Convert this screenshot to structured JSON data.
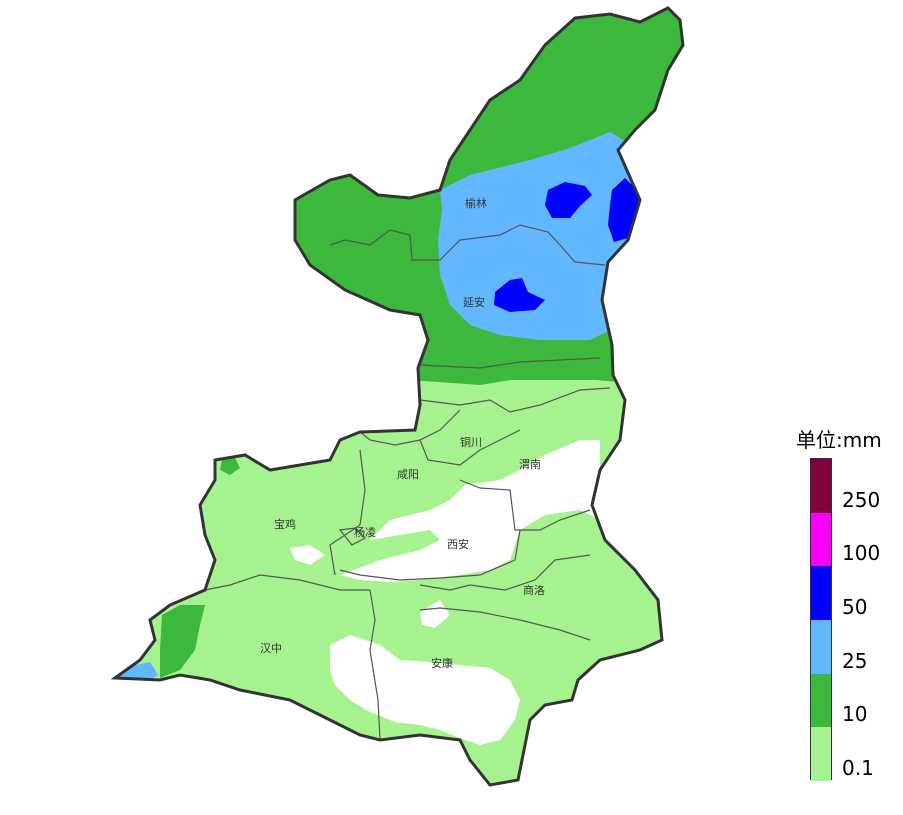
{
  "legend": {
    "title": "单位:mm",
    "bins": [
      {
        "label": "0.1",
        "color": "#a6f28f"
      },
      {
        "label": "10",
        "color": "#3cb83c"
      },
      {
        "label": "25",
        "color": "#61b8ff"
      },
      {
        "label": "50",
        "color": "#0000fe"
      },
      {
        "label": "100",
        "color": "#fa00fa"
      },
      {
        "label": "250",
        "color": "#800040"
      }
    ]
  },
  "cities": {
    "yulin": "榆林",
    "yanan": "延安",
    "tongchuan": "铜川",
    "xianyang": "咸阳",
    "weinan": "渭南",
    "baoji": "宝鸡",
    "yangling": "杨凌",
    "xian": "西安",
    "shangluo": "商洛",
    "hanzhong": "汉中",
    "ankang": "安康"
  }
}
